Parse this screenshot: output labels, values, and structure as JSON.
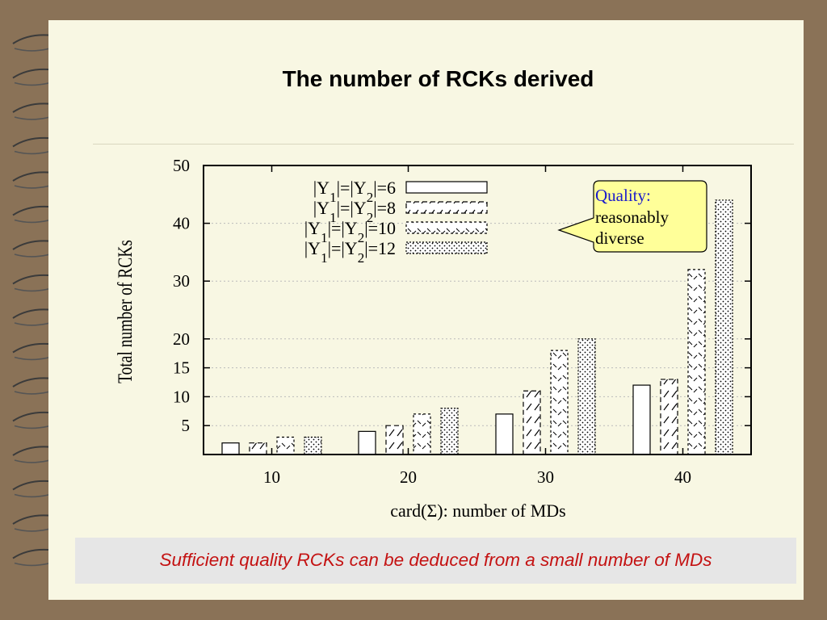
{
  "slide": {
    "title": "The number of RCKs derived",
    "caption": "Sufficient quality RCKs can be deduced from a small number of MDs",
    "callout": {
      "line1": "Quality:",
      "line2": "reasonably",
      "line3": "diverse"
    }
  },
  "colors": {
    "background": "#8a7257",
    "paper": "#f8f7e3",
    "caption_text": "#c41212",
    "callout_fill": "#ffff99",
    "callout_title": "#1a1acc"
  },
  "chart_data": {
    "type": "bar",
    "xlabel": "card(Σ): number of MDs",
    "ylabel": "Total number of RCKs",
    "categories": [
      "10",
      "20",
      "30",
      "40"
    ],
    "yticks": [
      5,
      10,
      15,
      20,
      30,
      40,
      50
    ],
    "ylim": [
      0,
      50
    ],
    "grid": true,
    "legend_position": "top-left",
    "series": [
      {
        "name": "|Y1|=|Y2|=6",
        "pattern": "empty",
        "values": [
          2,
          4,
          7,
          12
        ]
      },
      {
        "name": "|Y1|=|Y2|=8",
        "pattern": "dashed",
        "values": [
          2,
          5,
          11,
          13
        ]
      },
      {
        "name": "|Y1|=|Y2|=10",
        "pattern": "dotted-dash",
        "values": [
          3,
          7,
          18,
          32
        ]
      },
      {
        "name": "|Y1|=|Y2|=12",
        "pattern": "dots",
        "values": [
          3,
          8,
          20,
          44
        ]
      }
    ]
  }
}
